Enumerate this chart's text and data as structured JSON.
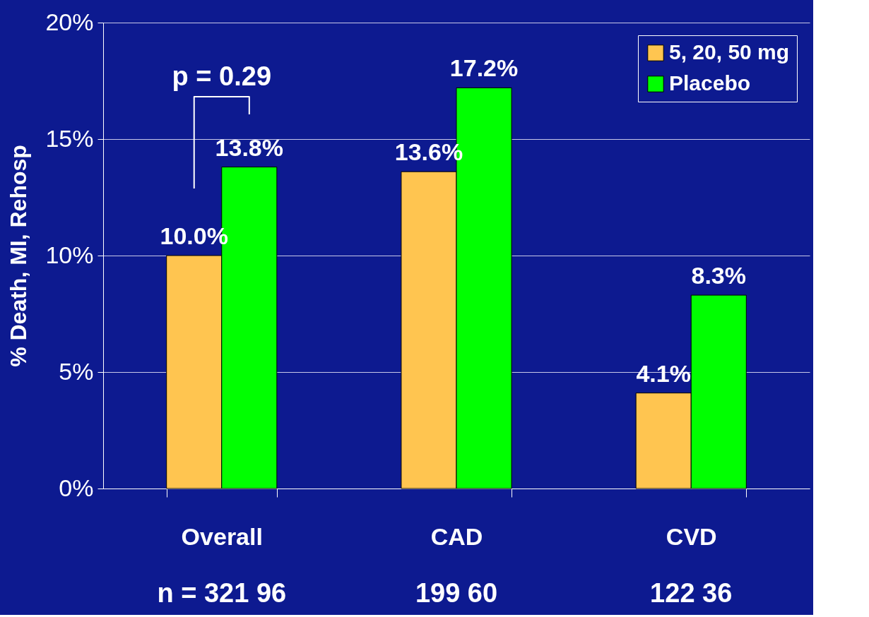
{
  "chart_data": {
    "type": "bar",
    "categories": [
      "Overall",
      "CAD",
      "CVD"
    ],
    "series": [
      {
        "name": "5, 20, 50 mg",
        "color": "#ffc550",
        "values": [
          10.0,
          13.6,
          4.1
        ],
        "value_labels": [
          "10.0%",
          "13.6%",
          "4.1%"
        ]
      },
      {
        "name": "Placebo",
        "color": "#00ff00",
        "values": [
          13.8,
          17.2,
          8.3
        ],
        "value_labels": [
          "13.8%",
          "17.2%",
          "8.3%"
        ]
      }
    ],
    "ylabel": "% Death, MI, Rehosp",
    "ylim": [
      0,
      20
    ],
    "yticks": [
      {
        "value": 0,
        "label": "0%"
      },
      {
        "value": 5,
        "label": "5%"
      },
      {
        "value": 10,
        "label": "10%"
      },
      {
        "value": 15,
        "label": "15%"
      },
      {
        "value": 20,
        "label": "20%"
      }
    ],
    "grid": "y",
    "legend": "top right",
    "annotations": [
      "p = 0.29",
      "n = 321   96",
      "199   60",
      "122   36"
    ]
  }
}
